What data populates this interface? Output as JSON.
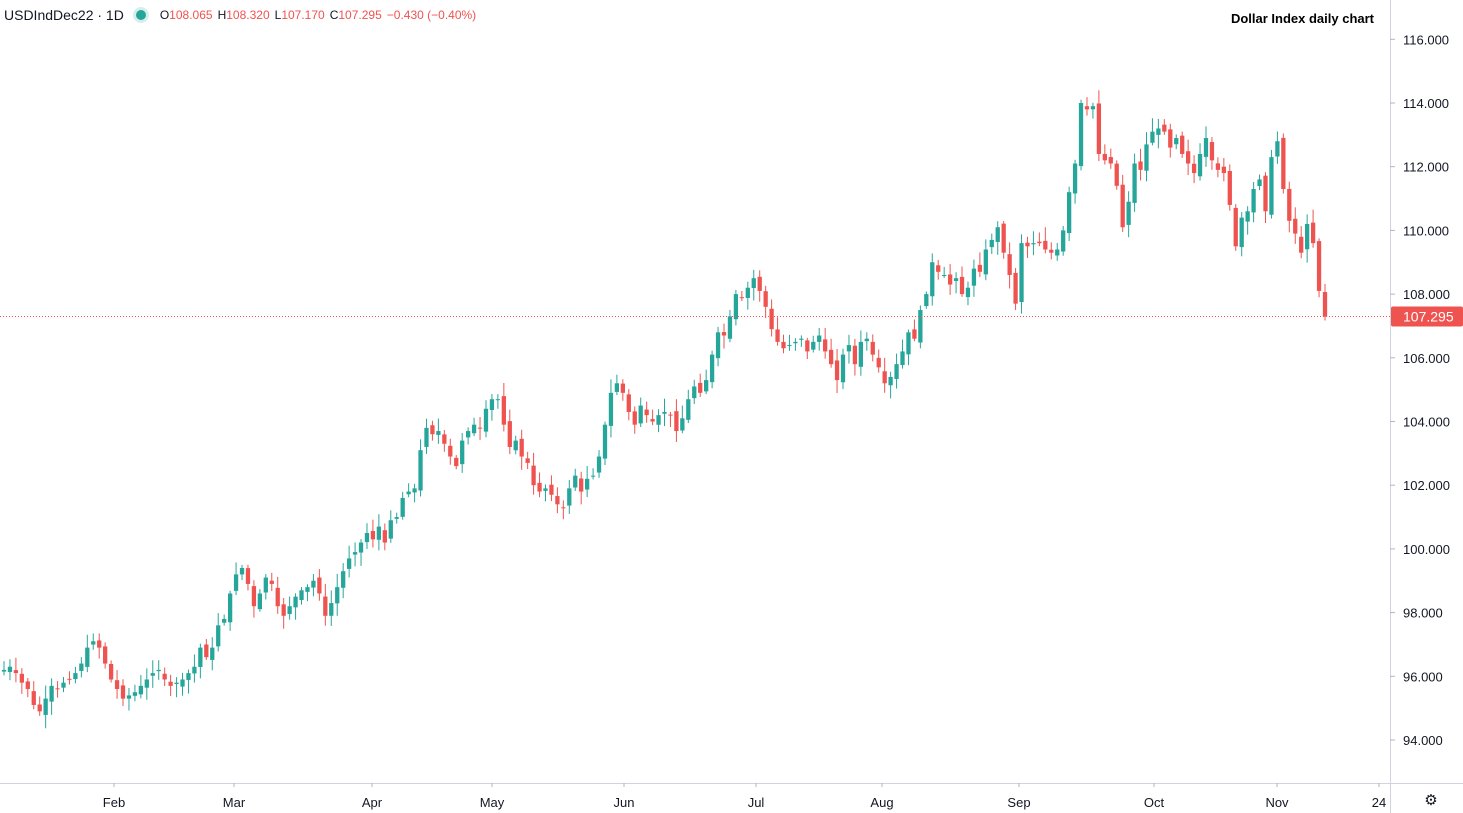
{
  "legend": {
    "symbol": "USDIndDec22 · 1D",
    "open_label": "O",
    "open": "108.065",
    "high_label": "H",
    "high": "108.320",
    "low_label": "L",
    "low": "107.170",
    "close_label": "C",
    "close": "107.295",
    "change": "−0.430 (−0.40%)"
  },
  "chart_data": {
    "type": "candlestick",
    "title": "Dollar Index daily chart",
    "ylim": [
      92.5,
      117.2
    ],
    "y_ticks": [
      "94.000",
      "96.000",
      "98.000",
      "100.000",
      "102.000",
      "104.000",
      "106.000",
      "108.000",
      "110.000",
      "112.000",
      "114.000",
      "116.000"
    ],
    "x_ticks": [
      "Feb",
      "Mar",
      "Apr",
      "May",
      "Jun",
      "Jul",
      "Aug",
      "Sep",
      "Oct",
      "Nov",
      "24"
    ],
    "last_price": "107.295",
    "colors": {
      "up": "#26a69a",
      "down": "#ef5350"
    },
    "closes": [
      96.2,
      96.3,
      96.1,
      95.8,
      95.6,
      95.1,
      94.9,
      95.3,
      95.7,
      95.6,
      95.8,
      95.9,
      96.1,
      96.4,
      96.9,
      97.1,
      96.9,
      96.4,
      95.9,
      95.6,
      95.3,
      95.4,
      95.5,
      95.7,
      95.9,
      96.1,
      96.2,
      95.9,
      95.7,
      95.8,
      95.9,
      96.1,
      96.3,
      96.9,
      96.6,
      96.9,
      97.6,
      97.8,
      98.6,
      99.2,
      99.4,
      98.9,
      98.2,
      98.6,
      99.1,
      98.9,
      98.2,
      97.9,
      98.2,
      98.5,
      98.7,
      98.8,
      99.0,
      98.6,
      97.9,
      98.3,
      98.8,
      99.3,
      99.7,
      99.9,
      100.2,
      100.5,
      100.3,
      100.7,
      100.2,
      100.9,
      101.0,
      101.6,
      101.8,
      101.9,
      103.1,
      103.8,
      103.6,
      103.7,
      103.3,
      102.9,
      102.6,
      103.4,
      103.7,
      103.9,
      103.8,
      104.4,
      104.7,
      104.7,
      103.9,
      103.2,
      103.4,
      102.9,
      102.7,
      102.0,
      101.8,
      101.9,
      101.7,
      101.4,
      101.3,
      101.9,
      102.3,
      101.8,
      102.2,
      102.3,
      102.9,
      103.9,
      104.9,
      105.2,
      104.9,
      104.3,
      103.9,
      104.5,
      104.2,
      104.0,
      104.2,
      104.3,
      104.2,
      103.7,
      104.1,
      104.7,
      105.1,
      104.9,
      105.3,
      106.1,
      106.8,
      106.7,
      107.3,
      108.0,
      107.9,
      108.2,
      108.5,
      108.1,
      107.6,
      106.9,
      106.5,
      106.3,
      106.4,
      106.5,
      106.6,
      106.2,
      106.5,
      106.7,
      106.2,
      105.8,
      105.3,
      106.1,
      106.4,
      105.8,
      106.5,
      106.6,
      106.1,
      105.7,
      105.2,
      105.4,
      105.8,
      106.2,
      106.8,
      106.6,
      107.5,
      108.0,
      109.0,
      108.7,
      108.6,
      108.3,
      108.5,
      108.0,
      108.2,
      108.8,
      108.7,
      109.4,
      109.7,
      110.1,
      109.3,
      108.6,
      107.7,
      109.6,
      109.5,
      109.6,
      109.6,
      109.4,
      109.3,
      109.4,
      110.0,
      111.2,
      112.1,
      114.0,
      113.8,
      113.9,
      112.4,
      112.2,
      112.1,
      111.4,
      110.1,
      110.9,
      112.1,
      111.9,
      112.7,
      113.1,
      113.2,
      113.1,
      112.6,
      112.9,
      112.4,
      112.1,
      111.8,
      112.4,
      112.9,
      112.2,
      111.9,
      111.8,
      110.8,
      109.5,
      110.4,
      110.6,
      111.3,
      111.6,
      110.6,
      112.3,
      112.8,
      111.3,
      110.3,
      109.9,
      109.3,
      110.2,
      109.6,
      108.1,
      107.295
    ],
    "current_candle": {
      "open": 108.065,
      "high": 108.32,
      "low": 107.17,
      "close": 107.295
    }
  }
}
